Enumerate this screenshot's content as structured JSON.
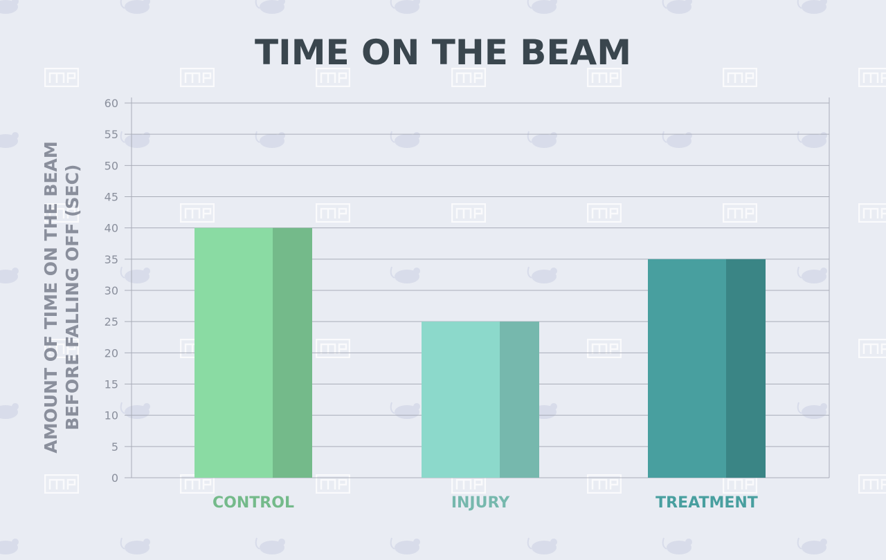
{
  "chart_data": {
    "type": "bar",
    "title": "TIME ON THE BEAM",
    "ylabel_line1": "AMOUNT OF TIME ON THE BEAM",
    "ylabel_line2": "BEFORE FALLING OFF (SEC)",
    "ylabel": "AMOUNT OF TIME ON THE BEAM BEFORE FALLING OFF (SEC)",
    "xlabel": "",
    "categories": [
      "CONTROL",
      "INJURY",
      "TREATMENT"
    ],
    "values": [
      40,
      25,
      35
    ],
    "ylim": [
      0,
      60
    ],
    "yticks": [
      "0",
      "5",
      "10",
      "15",
      "20",
      "25",
      "30",
      "35",
      "40",
      "45",
      "50",
      "55",
      "60"
    ],
    "grid": true,
    "legend": "none",
    "colors": {
      "front": [
        "#8adba3",
        "#8cd9cb",
        "#489f9f"
      ],
      "side": [
        "#74ba8a",
        "#76b8ad",
        "#3a8585"
      ],
      "label": [
        "#74ba8a",
        "#76b8ad",
        "#489f9f"
      ],
      "title": "#3a464e",
      "axis_text": "#8a8f9c",
      "grid": "#a9adb8",
      "background": "#e9ecf3"
    }
  },
  "watermark": {
    "logo_text": "ME",
    "icon": "mouse-icon"
  }
}
